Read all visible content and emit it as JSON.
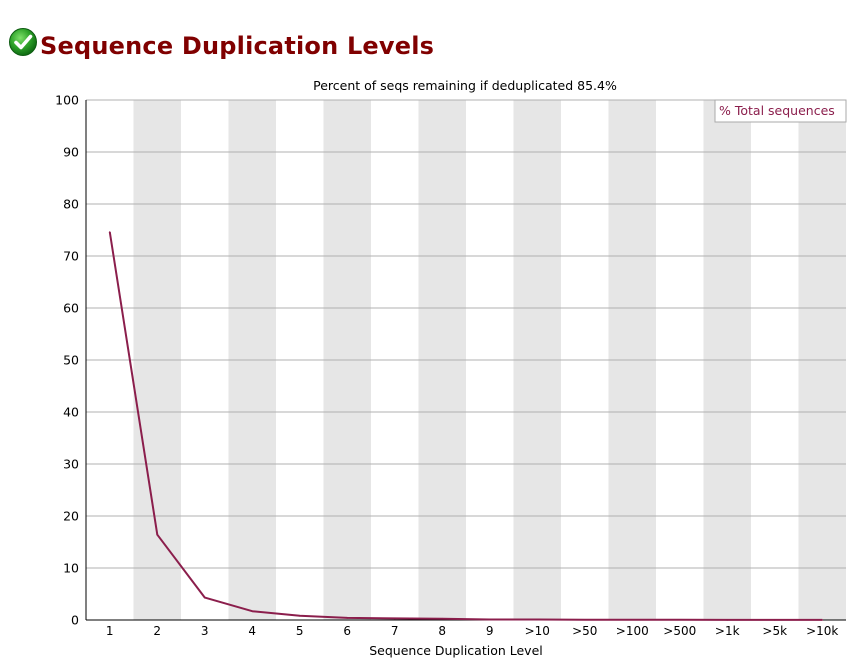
{
  "page": {
    "title": "Sequence Duplication Levels",
    "status_icon": "pass-check-icon"
  },
  "colors": {
    "title": "#800000",
    "series": "#8b1e4c",
    "band": "#e6e6e6",
    "grid": "#b0b0b0",
    "status_green": "#22a020"
  },
  "chart_data": {
    "type": "line",
    "title": "Percent of seqs remaining if deduplicated 85.4%",
    "xlabel": "Sequence Duplication Level",
    "ylabel": "",
    "categories": [
      "1",
      "2",
      "3",
      "4",
      "5",
      "6",
      "7",
      "8",
      "9",
      ">10",
      ">50",
      ">100",
      ">500",
      ">1k",
      ">5k",
      ">10k"
    ],
    "yticks": [
      "0",
      "10",
      "20",
      "30",
      "40",
      "50",
      "60",
      "70",
      "80",
      "90",
      "100"
    ],
    "ylim": [
      0,
      100
    ],
    "grid": true,
    "alternating_bands": true,
    "legend_position": "top-right",
    "series": [
      {
        "name": "% Total sequences",
        "values": [
          74.6,
          16.4,
          4.3,
          1.7,
          0.8,
          0.4,
          0.3,
          0.25,
          0.1,
          0.1,
          0.05,
          0.05,
          0.05,
          0.02,
          0.02,
          0.02
        ]
      }
    ]
  }
}
